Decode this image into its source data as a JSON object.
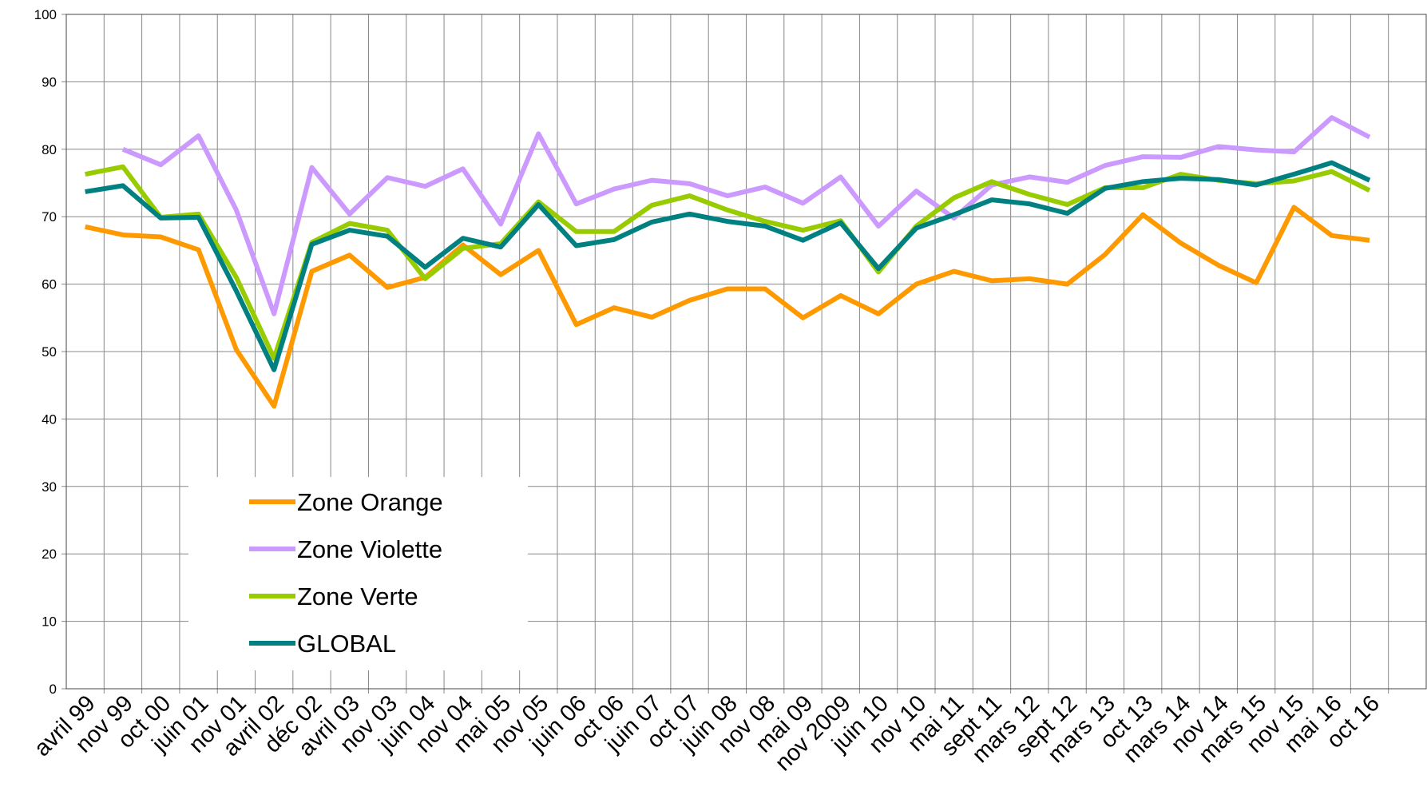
{
  "chart_data": {
    "type": "line",
    "categories": [
      "avril 99",
      "nov 99",
      "oct 00",
      "juin 01",
      "nov 01",
      "avril 02",
      "déc 02",
      "avril 03",
      "nov 03",
      "juin 04",
      "nov 04",
      "mai 05",
      "nov 05",
      "juin 06",
      "oct 06",
      "juin 07",
      "oct 07",
      "juin 08",
      "nov 08",
      "mai 09",
      "nov 2009",
      "juin 10",
      "nov 10",
      "mai 11",
      "sept 11",
      "mars 12",
      "sept 12",
      "mars 13",
      "oct 13",
      "mars 14",
      "nov 14",
      "mars 15",
      "nov 15",
      "mai 16",
      "oct 16",
      null
    ],
    "series": [
      {
        "name": "Zone Orange",
        "color": "#ff9900",
        "values": [
          68.5,
          67.3,
          67.0,
          65.1,
          50.3,
          41.9,
          61.9,
          64.3,
          59.5,
          61.0,
          65.8,
          61.4,
          65.0,
          54.0,
          56.5,
          55.1,
          57.6,
          59.3,
          59.3,
          55.0,
          58.3,
          55.6,
          60.0,
          61.9,
          60.5,
          60.8,
          60.0,
          64.4,
          70.3,
          66.1,
          62.8,
          60.2,
          71.4,
          67.2,
          66.5,
          null
        ]
      },
      {
        "name": "Zone Violette",
        "color": "#cc99ff",
        "values": [
          null,
          80.0,
          77.7,
          82.0,
          71.0,
          55.6,
          77.3,
          70.4,
          75.8,
          74.5,
          77.1,
          68.9,
          82.3,
          71.9,
          74.1,
          75.4,
          74.9,
          73.1,
          74.4,
          72.0,
          75.9,
          68.6,
          73.8,
          69.8,
          74.7,
          75.9,
          75.1,
          77.6,
          78.9,
          78.8,
          80.4,
          79.9,
          79.6,
          84.7,
          81.8,
          null
        ]
      },
      {
        "name": "Zone Verte",
        "color": "#99cc00",
        "values": [
          76.3,
          77.4,
          69.9,
          70.4,
          61.0,
          49.0,
          66.2,
          69.0,
          68.0,
          60.8,
          65.3,
          66.0,
          72.2,
          67.8,
          67.8,
          71.7,
          73.1,
          71.0,
          69.3,
          68.0,
          69.4,
          61.8,
          68.6,
          72.8,
          75.2,
          73.3,
          71.8,
          74.3,
          74.3,
          76.3,
          75.4,
          74.9,
          75.3,
          76.7,
          73.9,
          null
        ]
      },
      {
        "name": "GLOBAL",
        "color": "#008080",
        "values": [
          73.7,
          74.6,
          69.8,
          69.9,
          59.0,
          47.3,
          65.9,
          68.0,
          67.1,
          62.5,
          66.8,
          65.5,
          71.8,
          65.7,
          66.6,
          69.2,
          70.4,
          69.3,
          68.6,
          66.5,
          69.1,
          62.3,
          68.3,
          70.3,
          72.5,
          71.9,
          70.5,
          74.2,
          75.2,
          75.7,
          75.5,
          74.7,
          76.3,
          78.0,
          75.4,
          null
        ]
      }
    ],
    "ylim": [
      0,
      100
    ],
    "yticks": [
      0,
      10,
      20,
      30,
      40,
      50,
      60,
      70,
      80,
      90,
      100
    ],
    "grid": true
  }
}
